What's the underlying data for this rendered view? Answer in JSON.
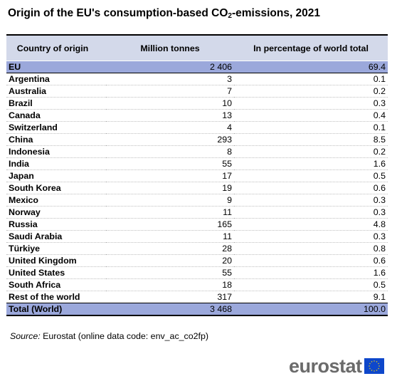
{
  "title": {
    "prefix": "Origin of the EU's consumption-based CO",
    "subscript": "2",
    "suffix": "-emissions, 2021"
  },
  "table": {
    "headers": [
      "Country of origin",
      "Million tonnes",
      "In percentage of world total"
    ],
    "rows": [
      {
        "country": "EU",
        "tonnes": "2 406",
        "percent": "69.4",
        "highlight": true
      },
      {
        "country": "Argentina",
        "tonnes": "3",
        "percent": "0.1"
      },
      {
        "country": "Australia",
        "tonnes": "7",
        "percent": "0.2"
      },
      {
        "country": "Brazil",
        "tonnes": "10",
        "percent": "0.3"
      },
      {
        "country": "Canada",
        "tonnes": "13",
        "percent": "0.4"
      },
      {
        "country": "Switzerland",
        "tonnes": "4",
        "percent": "0.1"
      },
      {
        "country": "China",
        "tonnes": "293",
        "percent": "8.5"
      },
      {
        "country": "Indonesia",
        "tonnes": "8",
        "percent": "0.2"
      },
      {
        "country": "India",
        "tonnes": "55",
        "percent": "1.6"
      },
      {
        "country": "Japan",
        "tonnes": "17",
        "percent": "0.5"
      },
      {
        "country": "South Korea",
        "tonnes": "19",
        "percent": "0.6"
      },
      {
        "country": "Mexico",
        "tonnes": "9",
        "percent": "0.3"
      },
      {
        "country": "Norway",
        "tonnes": "11",
        "percent": "0.3"
      },
      {
        "country": "Russia",
        "tonnes": "165",
        "percent": "4.8"
      },
      {
        "country": "Saudi Arabia",
        "tonnes": "11",
        "percent": "0.3"
      },
      {
        "country": "Türkiye",
        "tonnes": "28",
        "percent": "0.8"
      },
      {
        "country": "United Kingdom",
        "tonnes": "20",
        "percent": "0.6"
      },
      {
        "country": "United States",
        "tonnes": "55",
        "percent": "1.6"
      },
      {
        "country": "South Africa",
        "tonnes": "18",
        "percent": "0.5"
      },
      {
        "country": "Rest of the world",
        "tonnes": "317",
        "percent": "9.1"
      },
      {
        "country": "Total (World)",
        "tonnes": "3 468",
        "percent": "100.0",
        "highlight": true,
        "total": true
      }
    ]
  },
  "source": {
    "label": "Source:",
    "text": " Eurostat (online data code: env_ac_co2fp)"
  },
  "logo": {
    "text": "eurostat",
    "icon": "eu-flag-icon"
  },
  "colors": {
    "header_bg": "#d3d9ea",
    "highlight_bg": "#9ba8db",
    "flag_blue": "#0e47cb",
    "flag_stars": "#ffdd00",
    "logo_text": "#6b6b6b"
  }
}
